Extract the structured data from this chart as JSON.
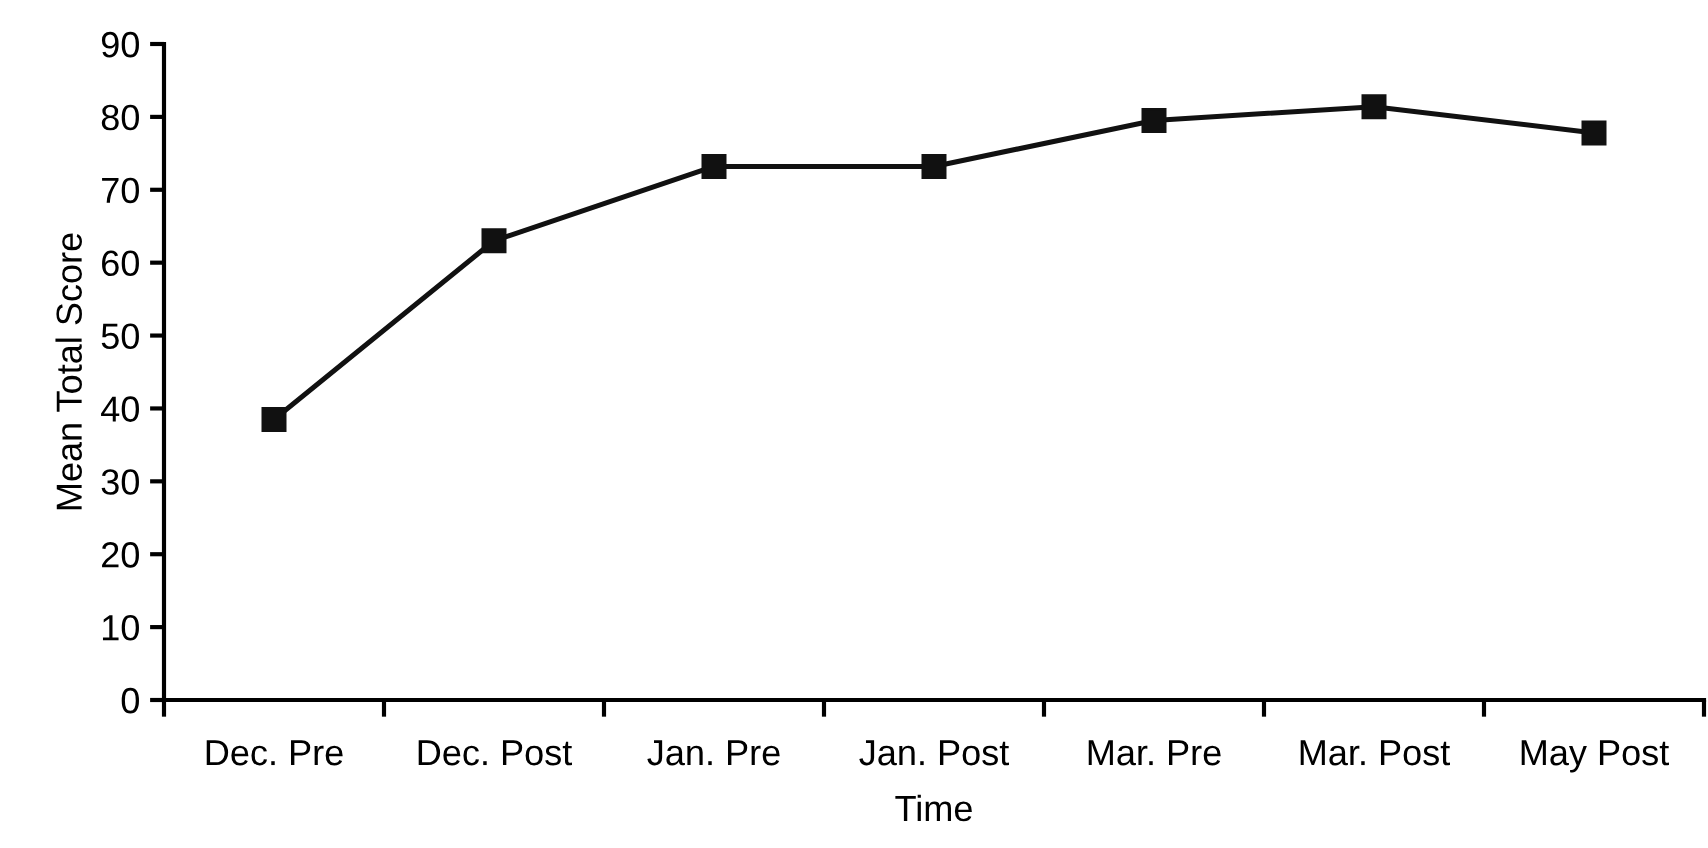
{
  "chart_data": {
    "type": "line",
    "xlabel": "Time",
    "ylabel": "Mean Total Score",
    "categories": [
      "Dec. Pre",
      "Dec. Post",
      "Jan. Pre",
      "Jan. Post",
      "Mar. Pre",
      "Mar. Post",
      "May Post"
    ],
    "series": [
      {
        "color": "#111111",
        "values": [
          38.5,
          63.0,
          73.2,
          73.2,
          79.5,
          81.4,
          77.8
        ]
      }
    ],
    "ylim": [
      0,
      90
    ],
    "yticks": [
      0,
      10,
      20,
      30,
      40,
      50,
      60,
      70,
      80,
      90
    ],
    "marker": "square",
    "line_style": "solid",
    "grid": false
  }
}
